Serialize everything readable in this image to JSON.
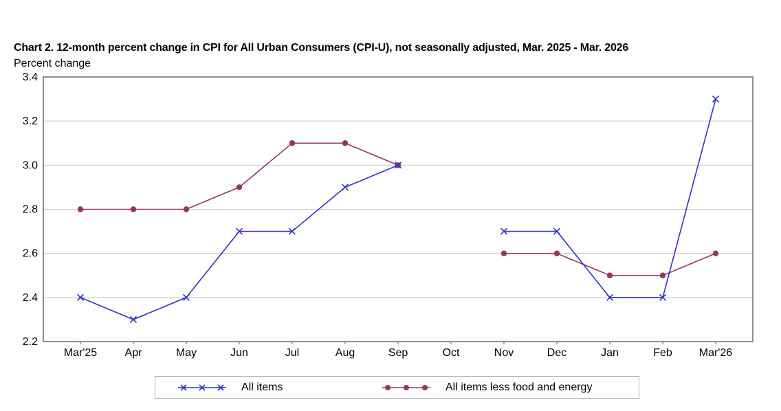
{
  "chart_data": {
    "type": "line",
    "title": "Chart 2. 12-month percent change in CPI for All Urban Consumers (CPI-U), not seasonally adjusted, Mar. 2025 - Mar. 2026",
    "ylabel": "Percent change",
    "xlabel": "",
    "categories": [
      "Mar'25",
      "Apr",
      "May",
      "Jun",
      "Jul",
      "Aug",
      "Sep",
      "Oct",
      "Nov",
      "Dec",
      "Jan",
      "Feb",
      "Mar'26"
    ],
    "series": [
      {
        "name": "All items",
        "color": "#3030cb",
        "marker": "x",
        "values": [
          2.4,
          2.3,
          2.4,
          2.7,
          2.7,
          2.9,
          3.0,
          null,
          2.7,
          2.7,
          2.4,
          2.4,
          3.3
        ]
      },
      {
        "name": "All items less food and energy",
        "color": "#993366",
        "marker": "circle",
        "values": [
          2.8,
          2.8,
          2.8,
          2.9,
          3.1,
          3.1,
          3.0,
          null,
          2.6,
          2.6,
          2.5,
          2.5,
          2.6
        ]
      }
    ],
    "ylim": [
      2.2,
      3.4
    ],
    "yticks": [
      3.4,
      3.2,
      3.0,
      2.8,
      2.6,
      2.4,
      2.2
    ],
    "grid": "horizontal",
    "legend_position": "bottom",
    "plot_border_color": "#8e8e8e",
    "gridline_color": "#c6c6c6"
  }
}
